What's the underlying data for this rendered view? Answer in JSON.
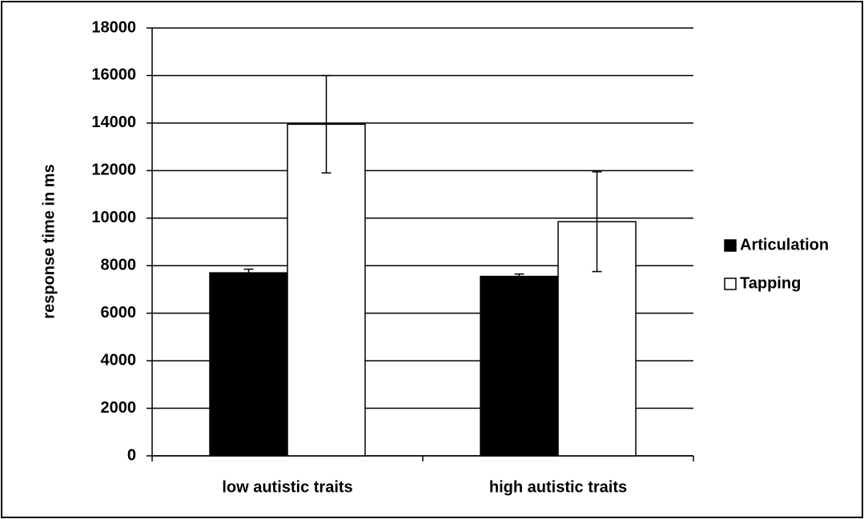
{
  "chart_data": {
    "type": "bar",
    "y_label": "response time in ms",
    "categories": [
      "low autistic traits",
      "high autistic traits"
    ],
    "series": [
      {
        "name": "Articulation",
        "color": "#000000",
        "values": [
          7700,
          7550
        ],
        "errors": [
          150,
          100
        ]
      },
      {
        "name": "Tapping",
        "color": "#ffffff",
        "values": [
          13950,
          9850
        ],
        "errors": [
          2050,
          2100
        ]
      }
    ],
    "ylim": [
      0,
      18000
    ],
    "yticks": [
      0,
      2000,
      4000,
      6000,
      8000,
      10000,
      12000,
      14000,
      16000,
      18000
    ],
    "grid": true,
    "legend": "right"
  }
}
